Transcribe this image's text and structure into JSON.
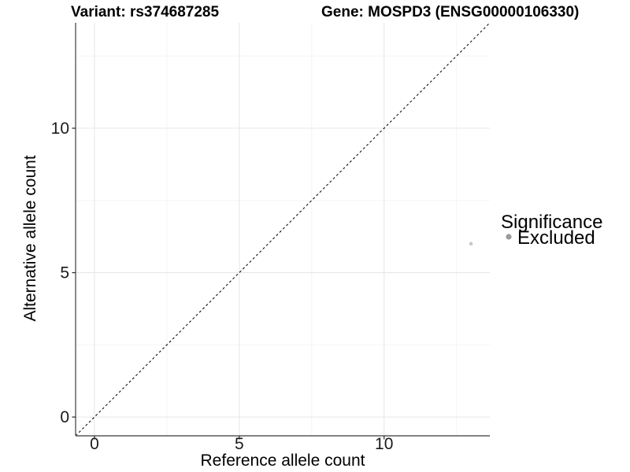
{
  "legend": {
    "title": "Significance",
    "position": "right",
    "items": [
      {
        "label": "Excluded",
        "swatch_color": "#9b9b9b"
      }
    ]
  },
  "colors": {
    "background": "#ffffff",
    "axis_line": "#595959",
    "tick_mark": "#333333",
    "grid_major": "#e7e7e7",
    "grid_minor": "#f3f3f3",
    "reference_line": "#111111",
    "point": "#c8c8c8",
    "text": "#000000"
  },
  "chart_data": {
    "type": "scatter",
    "title_left": "Variant: rs374687285",
    "title_right": "Gene: MOSPD3 (ENSG00000106330)",
    "xlabel": "Reference allele count",
    "ylabel": "Alternative allele count",
    "xlim": [
      -0.65,
      13.65
    ],
    "ylim": [
      -0.65,
      13.65
    ],
    "x_major_ticks": [
      0,
      5,
      10
    ],
    "x_minor_ticks": [
      2.5,
      7.5,
      12.5
    ],
    "y_major_ticks": [
      0,
      5,
      10
    ],
    "y_minor_ticks": [
      2.5,
      7.5,
      12.5
    ],
    "grid": true,
    "legend_position": "right",
    "reference_line": {
      "type": "identity",
      "slope": 1,
      "intercept": 0,
      "style": "dashed"
    },
    "series": [
      {
        "name": "Excluded",
        "color": "#c8c8c8",
        "points": [
          {
            "x": 13,
            "y": 6
          }
        ]
      }
    ]
  }
}
